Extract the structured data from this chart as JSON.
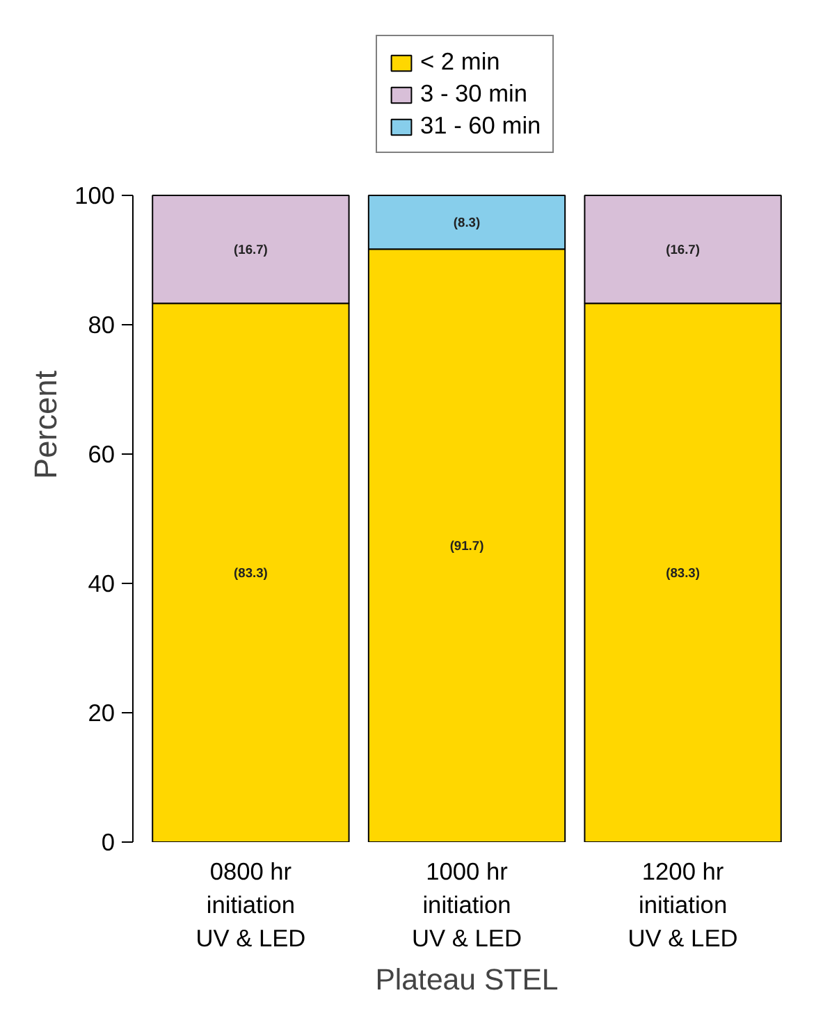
{
  "chart_data": {
    "type": "bar",
    "stacked": true,
    "xlabel": "Plateau STEL",
    "ylabel": "Percent",
    "categories": [
      "0800 hr\ninitiation\nUV & LED",
      "1000 hr\ninitiation\nUV & LED",
      "1200 hr\ninitiation\nUV & LED"
    ],
    "series": [
      {
        "name": "< 2 min",
        "color": "#ffd700",
        "values": [
          83.3,
          91.7,
          83.3
        ],
        "value_labels": [
          "(83.3)",
          "(91.7)",
          "(83.3)"
        ]
      },
      {
        "name": "3 - 30 min",
        "color": "#d8bfd8",
        "values": [
          16.7,
          null,
          16.7
        ],
        "value_labels": [
          "(16.7)",
          null,
          "(16.7)"
        ]
      },
      {
        "name": "31 - 60 min",
        "color": "#87ceeb",
        "values": [
          null,
          8.3,
          null
        ],
        "value_labels": [
          null,
          "(8.3)",
          null
        ]
      }
    ],
    "ylim": [
      0,
      100
    ],
    "yticks": [
      0,
      20,
      40,
      60,
      80,
      100
    ],
    "grid": false,
    "legend": "top"
  }
}
